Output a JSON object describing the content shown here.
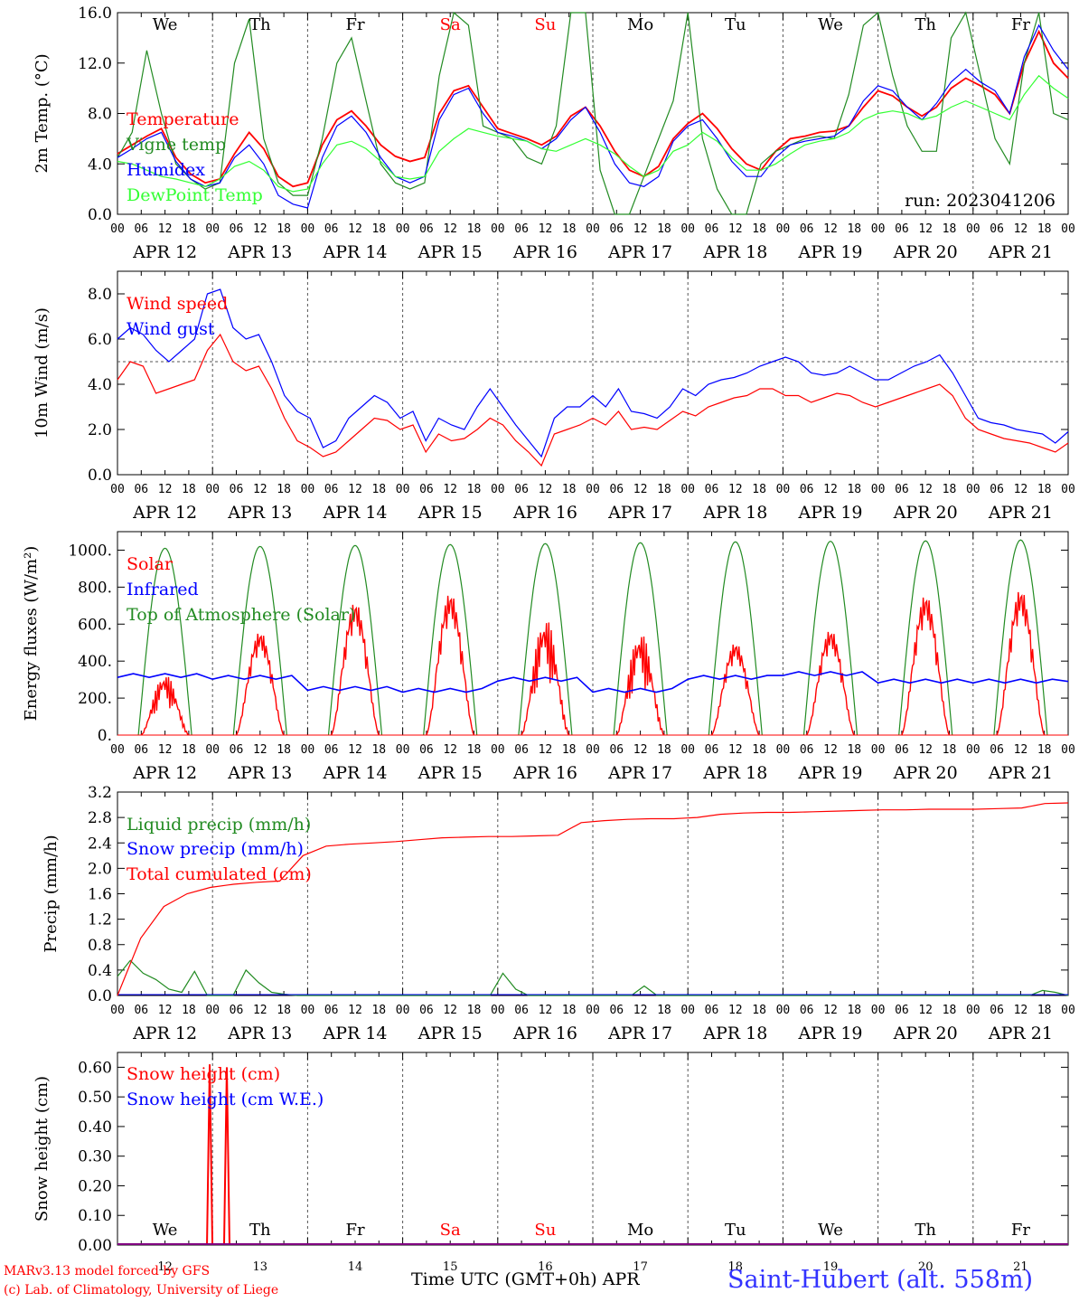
{
  "run_label": "run: 2023041206",
  "day_names": [
    "We",
    "Th",
    "Fr",
    "Sa",
    "Su",
    "Mo",
    "Tu",
    "We",
    "Th",
    "Fr"
  ],
  "day_name_colors": [
    "#000000",
    "#000000",
    "#000000",
    "#ff0000",
    "#ff0000",
    "#000000",
    "#000000",
    "#000000",
    "#000000",
    "#000000"
  ],
  "date_labels": [
    "APR 12",
    "APR 13",
    "APR 14",
    "APR 15",
    "APR 16",
    "APR 17",
    "APR 18",
    "APR 19",
    "APR 20",
    "APR 21"
  ],
  "hour_labels": [
    "00",
    "06",
    "12",
    "18"
  ],
  "day_numbers": [
    "12",
    "13",
    "14",
    "15",
    "16",
    "17",
    "18",
    "19",
    "20",
    "21"
  ],
  "footer": {
    "credit_line1": "MARv3.13 model forced by GFS",
    "credit_line2": "(c) Lab. of Climatology, University of Liege",
    "xaxis_title": "Time UTC (GMT+0h) APR",
    "station": "Saint-Hubert (alt. 558m)"
  },
  "colors": {
    "red": "#ff0000",
    "green": "#228b22",
    "blue": "#0000ff",
    "lightgreen": "#33ff33",
    "purple": "#800080"
  },
  "chart_data": [
    {
      "type": "line",
      "ylabel": "2m Temp. (°C)",
      "ylim": [
        0,
        16
      ],
      "yticks": [
        "0.0",
        "4.0",
        "8.0",
        "12.0",
        "16.0"
      ],
      "grid": "vertical dashed day lines",
      "legend_placement": "left",
      "series": [
        {
          "name": "Temperature",
          "color": "#ff0000",
          "values": [
            4.8,
            5.5,
            6.2,
            6.8,
            4.5,
            3.2,
            2.5,
            2.8,
            4.8,
            6.5,
            5.2,
            3.0,
            2.2,
            2.5,
            5.5,
            7.5,
            8.2,
            7.0,
            5.5,
            4.6,
            4.2,
            4.5,
            8.0,
            9.8,
            10.2,
            8.5,
            6.8,
            6.4,
            6.0,
            5.5,
            6.2,
            7.8,
            8.5,
            7.0,
            5.0,
            3.5,
            3.0,
            3.8,
            6.0,
            7.2,
            8.0,
            6.8,
            5.2,
            4.0,
            3.5,
            5.0,
            6.0,
            6.2,
            6.5,
            6.6,
            7.0,
            8.5,
            9.8,
            9.4,
            8.5,
            7.8,
            8.5,
            10.0,
            10.8,
            10.2,
            9.5,
            8.0,
            12.0,
            14.5,
            12.0,
            10.8
          ]
        },
        {
          "name": "Vigne temp",
          "color": "#228b22",
          "values": [
            4.5,
            6.5,
            13.0,
            8.0,
            4.0,
            2.8,
            2.0,
            2.5,
            12.0,
            15.5,
            6.0,
            2.5,
            1.5,
            1.5,
            6.0,
            12.0,
            14.0,
            9.0,
            4.0,
            2.5,
            2.0,
            2.5,
            11.0,
            17.0,
            15.0,
            7.0,
            6.5,
            6.0,
            4.5,
            4.0,
            7.0,
            16.5,
            17.5,
            3.5,
            0.0,
            0.0,
            3.0,
            6.0,
            9.0,
            16.0,
            6.0,
            2.0,
            0.0,
            0.0,
            4.0,
            5.0,
            5.5,
            6.0,
            6.2,
            6.0,
            9.5,
            15.0,
            16.0,
            11.0,
            7.0,
            5.0,
            5.0,
            14.0,
            17.0,
            11.0,
            6.0,
            4.0,
            12.0,
            17.0,
            8.0,
            7.5
          ]
        },
        {
          "name": "Humidex",
          "color": "#0000ff",
          "values": [
            4.5,
            5.2,
            6.0,
            6.5,
            4.2,
            2.8,
            2.2,
            2.5,
            4.5,
            5.5,
            4.0,
            1.5,
            0.8,
            0.5,
            4.5,
            7.0,
            7.8,
            6.5,
            4.5,
            3.0,
            2.5,
            3.0,
            7.5,
            9.5,
            10.0,
            8.0,
            6.5,
            6.2,
            5.8,
            5.2,
            6.0,
            7.5,
            8.5,
            6.5,
            4.0,
            2.5,
            2.2,
            3.0,
            5.8,
            7.0,
            7.5,
            6.0,
            4.2,
            3.0,
            3.0,
            4.5,
            5.5,
            5.8,
            6.0,
            6.2,
            7.0,
            9.0,
            10.2,
            9.8,
            8.5,
            7.5,
            8.8,
            10.5,
            11.5,
            10.5,
            9.8,
            8.0,
            12.5,
            15.0,
            13.0,
            11.5
          ]
        },
        {
          "name": "DewPoint Temp",
          "color": "#33ff33",
          "values": [
            4.2,
            4.0,
            3.5,
            3.0,
            2.8,
            2.5,
            2.2,
            2.8,
            3.8,
            4.2,
            3.5,
            2.2,
            1.8,
            2.0,
            4.0,
            5.5,
            5.8,
            5.2,
            4.2,
            3.0,
            2.8,
            3.0,
            5.0,
            6.0,
            6.8,
            6.5,
            6.2,
            6.0,
            5.8,
            5.2,
            5.0,
            5.5,
            6.0,
            5.5,
            4.8,
            3.8,
            3.0,
            3.5,
            5.0,
            5.5,
            6.5,
            5.8,
            4.5,
            3.5,
            3.5,
            4.0,
            4.8,
            5.5,
            5.8,
            6.0,
            6.5,
            7.5,
            8.0,
            8.2,
            8.0,
            7.5,
            7.8,
            8.5,
            9.0,
            8.5,
            8.0,
            7.5,
            9.5,
            11.0,
            10.0,
            9.2
          ]
        }
      ]
    },
    {
      "type": "line",
      "ylabel": "10m Wind (m/s)",
      "ylim": [
        0,
        9
      ],
      "yticks": [
        "0.0",
        "2.0",
        "4.0",
        "6.0",
        "8.0"
      ],
      "ref_line": 5.0,
      "legend_placement": "left",
      "series": [
        {
          "name": "Wind speed",
          "color": "#ff0000",
          "values": [
            4.2,
            5.0,
            4.8,
            3.6,
            3.8,
            4.0,
            4.2,
            5.5,
            6.2,
            5.0,
            4.6,
            4.8,
            3.8,
            2.5,
            1.5,
            1.2,
            0.8,
            1.0,
            1.5,
            2.0,
            2.5,
            2.4,
            2.0,
            2.2,
            1.0,
            1.8,
            1.5,
            1.6,
            2.0,
            2.5,
            2.2,
            1.5,
            1.0,
            0.4,
            1.8,
            2.0,
            2.2,
            2.5,
            2.2,
            2.8,
            2.0,
            2.1,
            2.0,
            2.4,
            2.8,
            2.6,
            3.0,
            3.2,
            3.4,
            3.5,
            3.8,
            3.8,
            3.5,
            3.5,
            3.2,
            3.4,
            3.6,
            3.5,
            3.2,
            3.0,
            3.2,
            3.4,
            3.6,
            3.8,
            4.0,
            3.5,
            2.5,
            2.0,
            1.8,
            1.6,
            1.5,
            1.4,
            1.2,
            1.0,
            1.4
          ]
        },
        {
          "name": "Wind gust",
          "color": "#0000ff",
          "values": [
            6.0,
            6.5,
            6.2,
            5.5,
            5.0,
            5.5,
            6.0,
            8.0,
            8.2,
            6.5,
            6.0,
            6.2,
            5.0,
            3.5,
            2.8,
            2.5,
            1.2,
            1.5,
            2.5,
            3.0,
            3.5,
            3.2,
            2.5,
            2.8,
            1.5,
            2.5,
            2.2,
            2.0,
            3.0,
            3.8,
            3.0,
            2.2,
            1.5,
            0.8,
            2.5,
            3.0,
            3.0,
            3.5,
            3.0,
            3.8,
            2.8,
            2.7,
            2.5,
            3.0,
            3.8,
            3.5,
            4.0,
            4.2,
            4.3,
            4.5,
            4.8,
            5.0,
            5.2,
            5.0,
            4.5,
            4.4,
            4.5,
            4.8,
            4.5,
            4.2,
            4.2,
            4.5,
            4.8,
            5.0,
            5.3,
            4.5,
            3.5,
            2.5,
            2.3,
            2.2,
            2.0,
            1.9,
            1.8,
            1.4,
            1.9
          ]
        }
      ]
    },
    {
      "type": "line",
      "ylabel": "Energy fluxes (W/m²)",
      "ylim": [
        0,
        1100
      ],
      "yticks": [
        "0.",
        "200.",
        "400.",
        "600.",
        "800.",
        "1000."
      ],
      "legend_placement": "left",
      "series": [
        {
          "name": "Solar",
          "color": "#ff0000",
          "daily_peaks": [
            330,
            560,
            720,
            770,
            640,
            560,
            500,
            570,
            760,
            790
          ]
        },
        {
          "name": "Infrared",
          "color": "#0000ff",
          "daily_values": [
            320,
            310,
            250,
            240,
            300,
            240,
            310,
            330,
            290,
            290
          ]
        },
        {
          "name": "Top of Atmosphere (Solar)",
          "color": "#228b22",
          "daily_peaks": [
            1010,
            1020,
            1025,
            1030,
            1035,
            1040,
            1045,
            1048,
            1050,
            1055
          ]
        }
      ]
    },
    {
      "type": "line",
      "ylabel": "Precip (mm/h)",
      "ylim": [
        0,
        3.2
      ],
      "yticks": [
        "0.0",
        "0.4",
        "0.8",
        "1.2",
        "1.6",
        "2.0",
        "2.4",
        "2.8",
        "3.2"
      ],
      "legend_placement": "left",
      "series": [
        {
          "name": "Liquid precip (mm/h)",
          "color": "#228b22",
          "values": [
            0.3,
            0.55,
            0.35,
            0.25,
            0.1,
            0.05,
            0.38,
            0.0,
            0.0,
            0.0,
            0.4,
            0.2,
            0.05,
            0.02,
            0.0,
            0.0,
            0.0,
            0.0,
            0.0,
            0.0,
            0.0,
            0.0,
            0.0,
            0.0,
            0.0,
            0.0,
            0.0,
            0.0,
            0.0,
            0.0,
            0.35,
            0.1,
            0.0,
            0.0,
            0.0,
            0.0,
            0.0,
            0.0,
            0.0,
            0.0,
            0.0,
            0.15,
            0.0,
            0.0,
            0.0,
            0.0,
            0.0,
            0.0,
            0.0,
            0.0,
            0.0,
            0.0,
            0.0,
            0.0,
            0.0,
            0.0,
            0.0,
            0.0,
            0.0,
            0.0,
            0.0,
            0.0,
            0.0,
            0.0,
            0.0,
            0.0,
            0.0,
            0.0,
            0.0,
            0.0,
            0.0,
            0.0,
            0.08,
            0.05,
            0.0
          ]
        },
        {
          "name": "Snow precip (mm/h)",
          "color": "#0000ff",
          "values": [
            0.0,
            0.0,
            0.0,
            0.0,
            0.0,
            0.0,
            0.0,
            0.0,
            0.0,
            0.0
          ]
        },
        {
          "name": "Total cumulated (cm)",
          "color": "#ff0000",
          "values": [
            0.0,
            0.9,
            1.4,
            1.6,
            1.7,
            1.75,
            1.78,
            1.8,
            2.2,
            2.35,
            2.38,
            2.4,
            2.42,
            2.45,
            2.48,
            2.49,
            2.5,
            2.5,
            2.51,
            2.52,
            2.72,
            2.75,
            2.77,
            2.78,
            2.78,
            2.8,
            2.85,
            2.87,
            2.88,
            2.88,
            2.89,
            2.9,
            2.91,
            2.92,
            2.92,
            2.93,
            2.93,
            2.93,
            2.94,
            2.95,
            3.02,
            3.03
          ]
        }
      ]
    },
    {
      "type": "line",
      "ylabel": "Snow height (cm)",
      "ylim": [
        0,
        0.65
      ],
      "yticks": [
        "0.00",
        "0.10",
        "0.20",
        "0.30",
        "0.40",
        "0.50",
        "0.60"
      ],
      "legend_placement": "top-left",
      "series": [
        {
          "name": "Snow height (cm)",
          "color": "#ff0000",
          "spikes": [
            {
              "day": 0.97,
              "value": 0.61
            },
            {
              "day": 1.15,
              "value": 0.6
            }
          ]
        },
        {
          "name": "Snow height (cm W.E.)",
          "color": "#0000ff",
          "spikes": []
        }
      ]
    }
  ]
}
